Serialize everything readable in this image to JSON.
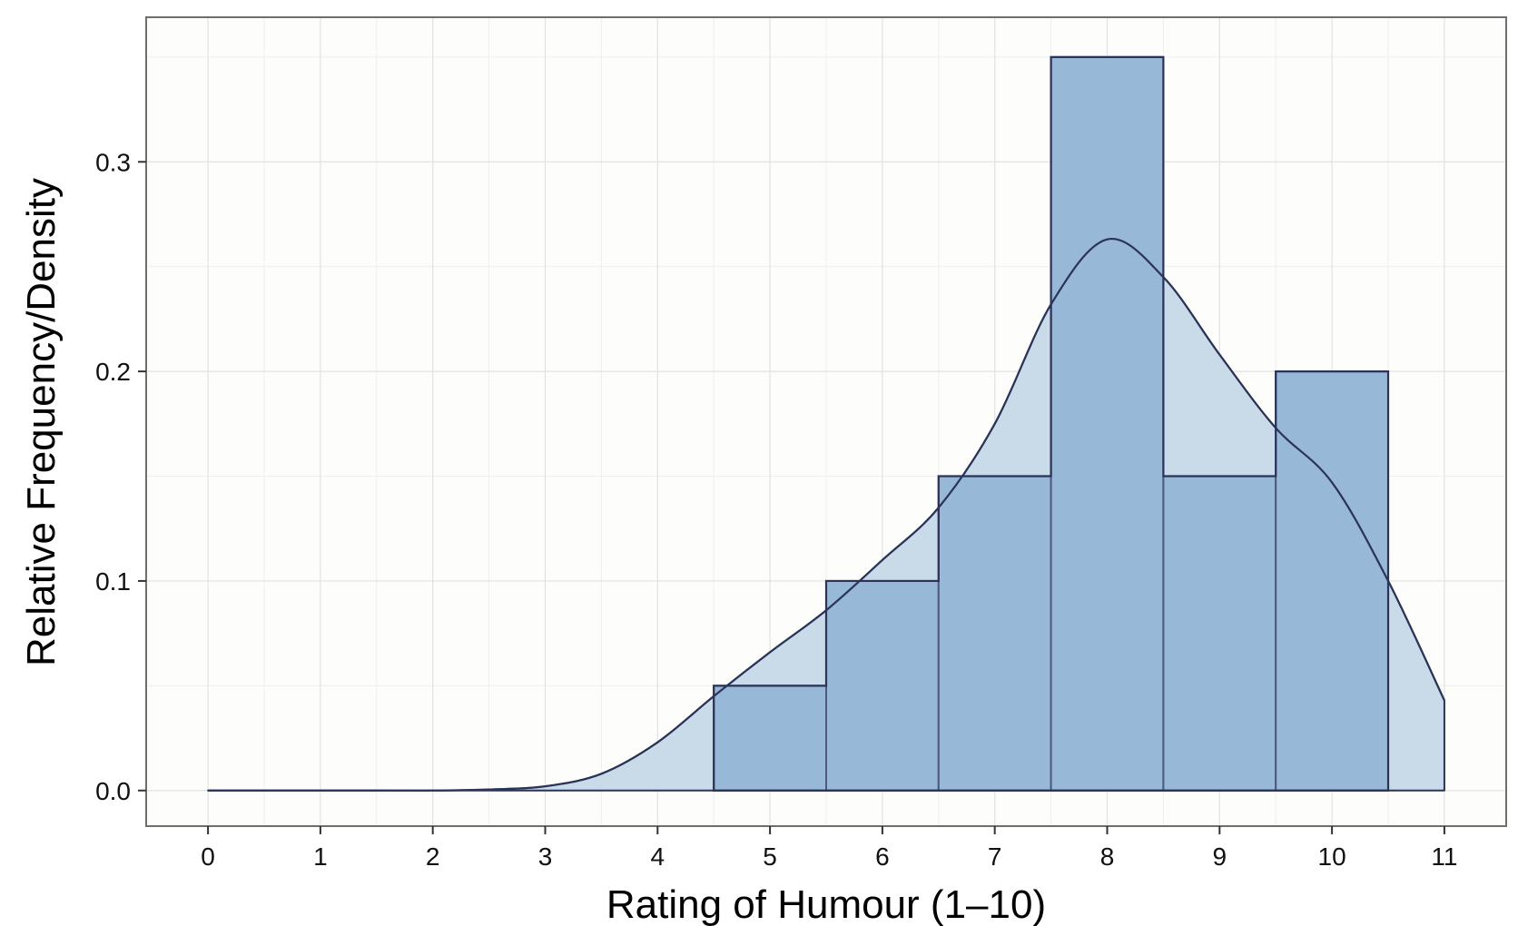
{
  "chart_data": {
    "type": "bar",
    "xlabel": "Rating of Humour (1–10)",
    "ylabel": "Relative Frequency/Density",
    "xlim": [
      -0.55,
      11.55
    ],
    "ylim": [
      -0.017,
      0.369
    ],
    "x_ticks": [
      0,
      1,
      2,
      3,
      4,
      5,
      6,
      7,
      8,
      9,
      10,
      11
    ],
    "x_tick_labels": [
      "0",
      "1",
      "2",
      "3",
      "4",
      "5",
      "6",
      "7",
      "8",
      "9",
      "10",
      "11"
    ],
    "y_ticks": [
      0.0,
      0.1,
      0.2,
      0.3
    ],
    "y_tick_labels": [
      "0.0",
      "0.1",
      "0.2",
      "0.3"
    ],
    "grid": true,
    "histogram": {
      "categories": [
        5,
        6,
        7,
        8,
        9,
        10
      ],
      "bin_width": 1,
      "values": [
        0.05,
        0.1,
        0.15,
        0.35,
        0.15,
        0.2
      ]
    },
    "density": {
      "x": [
        0,
        0.5,
        1,
        1.5,
        2,
        2.5,
        3,
        3.5,
        4,
        4.5,
        5,
        5.5,
        6,
        6.5,
        7,
        7.5,
        8,
        8.5,
        9,
        9.5,
        10,
        10.5,
        11
      ],
      "y": [
        0.0,
        0.0,
        0.0,
        0.0,
        0.0,
        0.0005,
        0.002,
        0.008,
        0.023,
        0.045,
        0.066,
        0.086,
        0.11,
        0.135,
        0.175,
        0.232,
        0.263,
        0.245,
        0.208,
        0.173,
        0.147,
        0.1,
        0.043
      ]
    },
    "colors": {
      "bar_fill": "#97b8d6",
      "bar_stroke": "#2a3358",
      "inner_bar_stroke": "#4d5a7d",
      "density_fill": "#c9dae8",
      "density_line": "#2a3358",
      "panel_bg": "#fdfdfb",
      "grid_major": "#e2e2e2",
      "grid_minor": "#efefef",
      "panel_border": "#6e6e6e"
    }
  }
}
